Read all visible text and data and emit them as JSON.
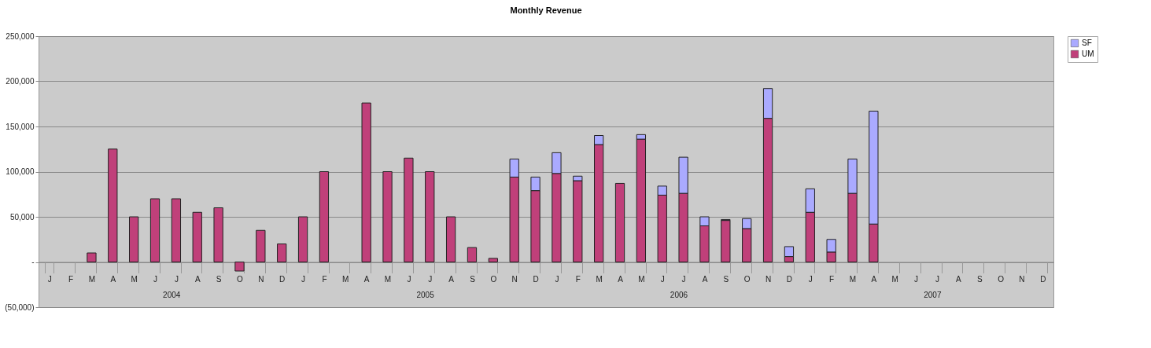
{
  "chart_data": {
    "type": "bar",
    "title": "Monthly Revenue",
    "stacked": true,
    "categories": [
      "J",
      "F",
      "M",
      "A",
      "M",
      "J",
      "J",
      "A",
      "S",
      "O",
      "N",
      "D",
      "J",
      "F",
      "M",
      "A",
      "M",
      "J",
      "J",
      "A",
      "S",
      "O",
      "N",
      "D",
      "J",
      "F",
      "M",
      "A",
      "M",
      "J",
      "J",
      "A",
      "S",
      "O",
      "N",
      "D",
      "J",
      "F",
      "M",
      "A",
      "M",
      "J",
      "J",
      "A",
      "S",
      "O",
      "N",
      "D"
    ],
    "series": [
      {
        "name": "UM",
        "color": "#c0407a",
        "values": [
          null,
          null,
          10000,
          125000,
          50000,
          70000,
          70000,
          55000,
          60000,
          -10000,
          35000,
          20000,
          50000,
          100000,
          null,
          176000,
          100000,
          115000,
          100000,
          50000,
          16000,
          4000,
          94000,
          79000,
          98000,
          90000,
          130000,
          87000,
          136000,
          74000,
          76000,
          40000,
          46000,
          37000,
          159000,
          6000,
          55000,
          11000,
          76000,
          42000,
          null,
          null,
          null,
          null,
          null,
          null,
          null,
          null
        ]
      },
      {
        "name": "SF",
        "color": "#aaaaff",
        "values": [
          null,
          null,
          null,
          null,
          null,
          null,
          null,
          null,
          null,
          null,
          null,
          null,
          null,
          null,
          null,
          null,
          null,
          null,
          null,
          null,
          null,
          null,
          20000,
          15000,
          23000,
          5000,
          10000,
          null,
          5000,
          10000,
          40000,
          10000,
          1000,
          11000,
          33000,
          11000,
          26000,
          14000,
          38000,
          125000,
          null,
          null,
          null,
          null,
          null,
          null,
          null,
          null
        ]
      }
    ],
    "ylim": [
      -50000,
      250000
    ],
    "yticks": [
      {
        "value": -50000,
        "label": "(50,000)"
      },
      {
        "value": 0,
        "label": "-"
      },
      {
        "value": 50000,
        "label": "50,000"
      },
      {
        "value": 100000,
        "label": "100,000"
      },
      {
        "value": 150000,
        "label": "150,000"
      },
      {
        "value": 200000,
        "label": "200,000"
      },
      {
        "value": 250000,
        "label": "250,000"
      }
    ],
    "grid": true,
    "legend": "right",
    "annotations": [
      "2004",
      "2005",
      "2006",
      "2007"
    ]
  }
}
